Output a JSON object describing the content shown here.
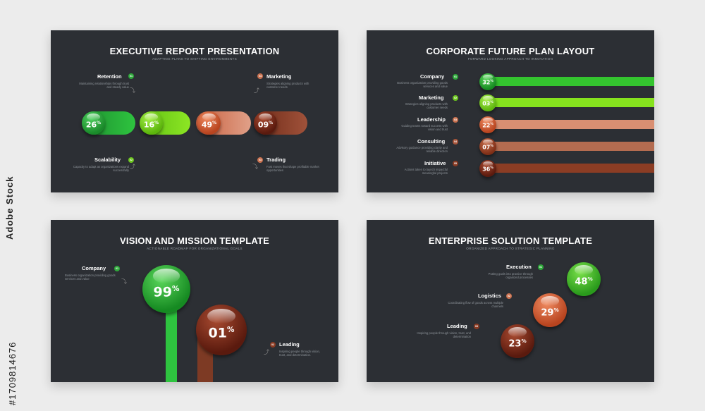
{
  "watermark": {
    "brand": "Adobe Stock",
    "id": "#1709814676"
  },
  "slides": [
    {
      "title": "EXECUTIVE REPORT PRESENTATION",
      "subtitle": "ADAPTING PLANS TO SHIFTING ENVIRONMENTS",
      "items": [
        {
          "label": "Retention",
          "badge": "01",
          "desc": "Maintaining relationships through trust and steady value"
        },
        {
          "label": "Marketing",
          "badge": "04",
          "desc": "Strategies aligning products with customer needs"
        },
        {
          "label": "Scalability",
          "badge": "02",
          "desc": "Capacity to adapt as organizations expand successfully"
        },
        {
          "label": "Trading",
          "badge": "03",
          "desc": "Fast moves that shape profitable market opportunities"
        }
      ],
      "values": [
        {
          "value": "26",
          "unit": "%",
          "color": "#21a83a"
        },
        {
          "value": "16",
          "unit": "%",
          "color": "#7bd619"
        },
        {
          "value": "49",
          "unit": "%",
          "color": "#d97857"
        },
        {
          "value": "09",
          "unit": "%",
          "color": "#8c3a22"
        }
      ]
    },
    {
      "title": "CORPORATE FUTURE PLAN LAYOUT",
      "subtitle": "FORWARD LOOKING APPROACH TO INNOVATION",
      "rows": [
        {
          "label": "Company",
          "badge": "01",
          "desc": "Business organization providing goods services and value",
          "value": "32",
          "unit": "%",
          "color": "#2ec42f"
        },
        {
          "label": "Marketing",
          "badge": "02",
          "desc": "Strategies aligning products with customer needs",
          "value": "03",
          "unit": "%",
          "color": "#84e01c"
        },
        {
          "label": "Leadership",
          "badge": "03",
          "desc": "Guiding teams toward success with vision and trust",
          "value": "22",
          "unit": "%",
          "color": "#d98a6d"
        },
        {
          "label": "Consulting",
          "badge": "04",
          "desc": "Advisory guidance providing clarity and reliable direction",
          "value": "07",
          "unit": "%",
          "color": "#b56a4d"
        },
        {
          "label": "Initiative",
          "badge": "05",
          "desc": "Actions taken to launch impactful meaningful projects",
          "value": "36",
          "unit": "%",
          "color": "#8a3b22"
        }
      ]
    },
    {
      "title": "VISION AND MISSION TEMPLATE",
      "subtitle": "ACTIONABLE ROADMAP FOR ORGANIZATIONAL GOALS",
      "items": [
        {
          "label": "Company",
          "badge": "01",
          "desc": "Business organization providing goods services and value",
          "value": "99",
          "unit": "%",
          "color": "#23b23a"
        },
        {
          "label": "Leading",
          "badge": "02",
          "desc": "Inspiring people through vision, trust, and determination.",
          "value": "01",
          "unit": "%",
          "color": "#7d2a1c"
        }
      ]
    },
    {
      "title": "ENTERPRISE SOLUTION TEMPLATE",
      "subtitle": "ORGANIZED APPROACH TO STRATEGIC PLANNING",
      "items": [
        {
          "label": "Execution",
          "badge": "01",
          "desc": "Putting goals into practice through organized processes",
          "value": "48",
          "unit": "%",
          "color": "#3cbf2a"
        },
        {
          "label": "Logistics",
          "badge": "02",
          "desc": "Coordinating flow of goods across multiple channels",
          "value": "29",
          "unit": "%",
          "color": "#c9572f"
        },
        {
          "label": "Leading",
          "badge": "03",
          "desc": "Inspiring people through vision, trust, and determination",
          "value": "23",
          "unit": "%",
          "color": "#8a2a18"
        }
      ]
    }
  ],
  "badge_colors": {
    "green": "#2ea83a",
    "lime": "#6cc51e",
    "salmon": "#c9714f",
    "brown": "#8a3a22"
  }
}
